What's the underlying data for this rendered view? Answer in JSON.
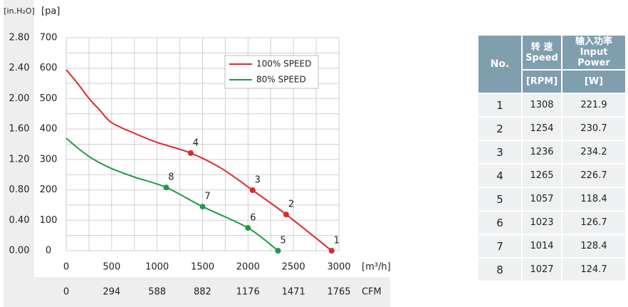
{
  "chart_data": {
    "type": "line",
    "y_label": "[pa]",
    "y2_label": "[in.H₂O]",
    "x_label": "[m³/h]",
    "x2_label": "CFM",
    "xlim": [
      0,
      3000
    ],
    "xticks": [
      0,
      500,
      1000,
      1500,
      2000,
      2500,
      3000
    ],
    "ylim": [
      0,
      700
    ],
    "yticks": [
      0,
      100,
      200,
      300,
      400,
      500,
      600,
      700
    ],
    "y2lim": [
      0,
      2.8
    ],
    "y2ticks": [
      {
        "value": 0,
        "label": "0.00"
      },
      {
        "value": 0.4,
        "label": "0.40"
      },
      {
        "value": 0.8,
        "label": "0.80"
      },
      {
        "value": 1.2,
        "label": "1.20"
      },
      {
        "value": 1.6,
        "label": "1.60"
      },
      {
        "value": 2.0,
        "label": "2.00"
      },
      {
        "value": 2.4,
        "label": "2.40"
      },
      {
        "value": 2.8,
        "label": "2.80"
      }
    ],
    "x2lim": [
      0,
      1765
    ],
    "x2ticks": [
      0,
      294,
      588,
      882,
      1176,
      1471,
      1765
    ],
    "xgrid": [
      0,
      250,
      500,
      750,
      1000,
      1250,
      1500,
      1750,
      2000,
      2250,
      2500,
      2750,
      3000
    ],
    "ygrid": [
      0,
      50,
      100,
      150,
      200,
      250,
      300,
      350,
      400,
      450,
      500,
      550,
      600,
      650,
      700
    ],
    "legend": "top-right",
    "series": [
      {
        "name": "100% SPEED",
        "color": "#e0262c",
        "x": [
          0,
          125,
          250,
          375,
          500,
          750,
          1000,
          1370,
          1700,
          2050,
          2420,
          2920
        ],
        "values": [
          595,
          550,
          501,
          460,
          421,
          386,
          356,
          321,
          272,
          199,
          119,
          0
        ],
        "points": {
          "labels": [
            "4",
            "3",
            "2",
            "1"
          ],
          "x": [
            1370,
            2050,
            2420,
            2920
          ],
          "values": [
            321,
            199,
            119,
            0
          ]
        }
      },
      {
        "name": "80%  SPEED",
        "color": "#1f9a48",
        "x": [
          0,
          125,
          250,
          375,
          500,
          750,
          1100,
          1500,
          2000,
          2330
        ],
        "values": [
          370,
          338,
          310,
          288,
          270,
          242,
          208,
          145,
          75,
          0
        ],
        "points": {
          "labels": [
            "8",
            "7",
            "6",
            "5"
          ],
          "x": [
            1100,
            1500,
            2000,
            2330
          ],
          "values": [
            208,
            145,
            75,
            0
          ]
        }
      }
    ]
  },
  "table": {
    "header": {
      "no": "No.",
      "speed_cn": "转 速",
      "speed_en": "Speed",
      "power_cn": "输入功率",
      "power_en": "Input Power",
      "speed_unit": "[RPM]",
      "power_unit": "[W]"
    },
    "rows": [
      [
        "1",
        "1308",
        "221.9"
      ],
      [
        "2",
        "1254",
        "230.7"
      ],
      [
        "3",
        "1236",
        "234.2"
      ],
      [
        "4",
        "1265",
        "226.7"
      ],
      [
        "5",
        "1057",
        "118.4"
      ],
      [
        "6",
        "1023",
        "126.7"
      ],
      [
        "7",
        "1014",
        "128.4"
      ],
      [
        "8",
        "1027",
        "124.7"
      ]
    ]
  }
}
